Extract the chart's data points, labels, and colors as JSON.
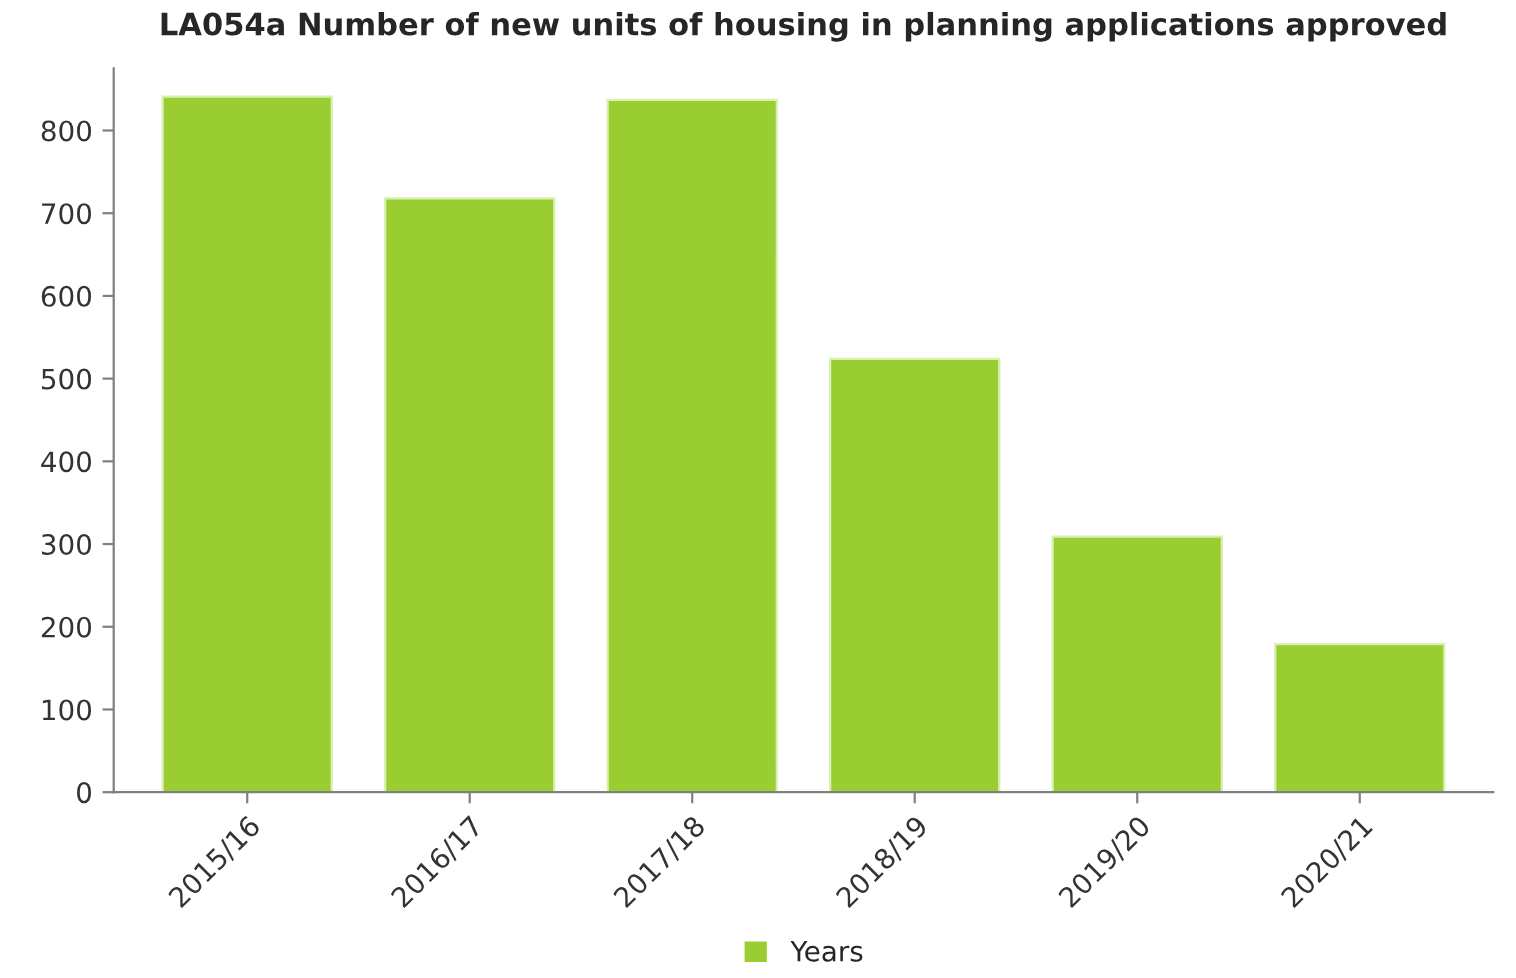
{
  "chart_data": {
    "type": "bar",
    "title": "LA054a Number of new units of housing in planning applications approved",
    "categories": [
      "2015/16",
      "2016/17",
      "2017/18",
      "2018/19",
      "2019/20",
      "2020/21"
    ],
    "series": [
      {
        "name": "Years",
        "color": "#9acd32",
        "values": [
          841,
          718,
          837,
          524,
          309,
          179
        ]
      }
    ],
    "ylim": [
      0,
      875
    ],
    "yticks": [
      0,
      100,
      200,
      300,
      400,
      500,
      600,
      700,
      800
    ],
    "grid": false,
    "legend": "bottom"
  }
}
